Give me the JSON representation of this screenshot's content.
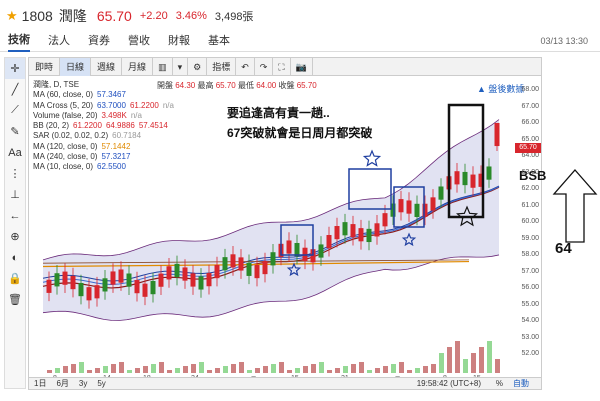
{
  "header": {
    "star": "★",
    "code": "1808",
    "name": "潤隆",
    "price": "65.70",
    "change": "+2.20",
    "percent": "3.46%",
    "volume": "3,498張"
  },
  "tabs": [
    "技術",
    "法人",
    "資券",
    "營收",
    "財報",
    "基本"
  ],
  "datetime": "03/13 13:30",
  "left_toolbar": [
    "crosshair-icon",
    "trend-line-icon",
    "ray-icon",
    "brush-icon",
    "text-icon",
    "fib-icon",
    "pitchfork-icon",
    "arrow-left-icon",
    "zoom-in-icon",
    "magnet-icon",
    "lock-icon",
    "trash-icon"
  ],
  "left_toolbar_glyphs": [
    "✛",
    "╱",
    "⟋",
    "✎",
    "Aa",
    "⋮",
    "⊥",
    "←",
    "⊕",
    "◐",
    "🔒",
    "🗑"
  ],
  "chart_toolbar": {
    "periods": [
      "即時",
      "日線",
      "週線",
      "月線"
    ],
    "icons": [
      "candle-icon",
      "chart-type-icon",
      "settings-icon",
      "indicator-icon",
      "undo-icon",
      "redo-icon",
      "fullscreen-icon",
      "camera-icon"
    ],
    "glyphs": [
      "▥",
      "▾",
      "⚙",
      "指標",
      "↶",
      "↷",
      "⛶",
      "📷"
    ]
  },
  "ohlc": {
    "open_label": "開盤",
    "open": "64.30",
    "high_label": "最高",
    "high": "65.70",
    "low_label": "最低",
    "low": "64.00",
    "close_label": "收盤",
    "close": "65.70"
  },
  "legend": [
    {
      "label": "潤隆, D, TSE",
      "values": []
    },
    {
      "label": "MA (60, close, 0)",
      "values": [
        "57.3467"
      ]
    },
    {
      "label": "MA Cross (5, 20)",
      "values": [
        "63.7000",
        "61.2200",
        "n/a"
      ]
    },
    {
      "label": "Volume (false, 20)",
      "values": [
        "3.498K",
        "n/a"
      ]
    },
    {
      "label": "BB (20, 2)",
      "values": [
        "61.2200",
        "64.9886",
        "57.4514"
      ]
    },
    {
      "label": "SAR (0.02, 0.02, 0.2)",
      "values": [
        "60.7184"
      ]
    },
    {
      "label": "MA (120, close, 0)",
      "values": [
        "57.1442"
      ]
    },
    {
      "label": "MA (240, close, 0)",
      "values": [
        "57.3217"
      ]
    },
    {
      "label": "MA (10, close, 0)",
      "values": [
        "62.5500"
      ]
    }
  ],
  "detail_link": "▲ 盤後數據",
  "annotations": {
    "line1": "要追逢高有責一趟..",
    "line2": "67突破就會是日周月都突破",
    "bsb": "BSB",
    "side": "64"
  },
  "y_axis": [
    "68.00",
    "67.00",
    "66.00",
    "65.00",
    "64.00",
    "63.00",
    "62.00",
    "61.00",
    "60.00",
    "59.00",
    "58.00",
    "57.00",
    "56.00",
    "55.00",
    "54.00",
    "53.00",
    "52.00"
  ],
  "last_price_tag": "65.70",
  "x_axis": [
    "8",
    "14",
    "18",
    "24",
    "二月",
    "15",
    "21",
    "三月",
    "8",
    "15"
  ],
  "footer": {
    "ranges": [
      "1日",
      "6月",
      "3y",
      "5y"
    ],
    "time": "19:58:42 (UTC+8)",
    "percent": "%",
    "auto": "自動"
  },
  "colors": {
    "up": "#d8262d",
    "down": "#2a8a2a",
    "band": "#c8cbe8",
    "accent": "#1f5fbf"
  }
}
